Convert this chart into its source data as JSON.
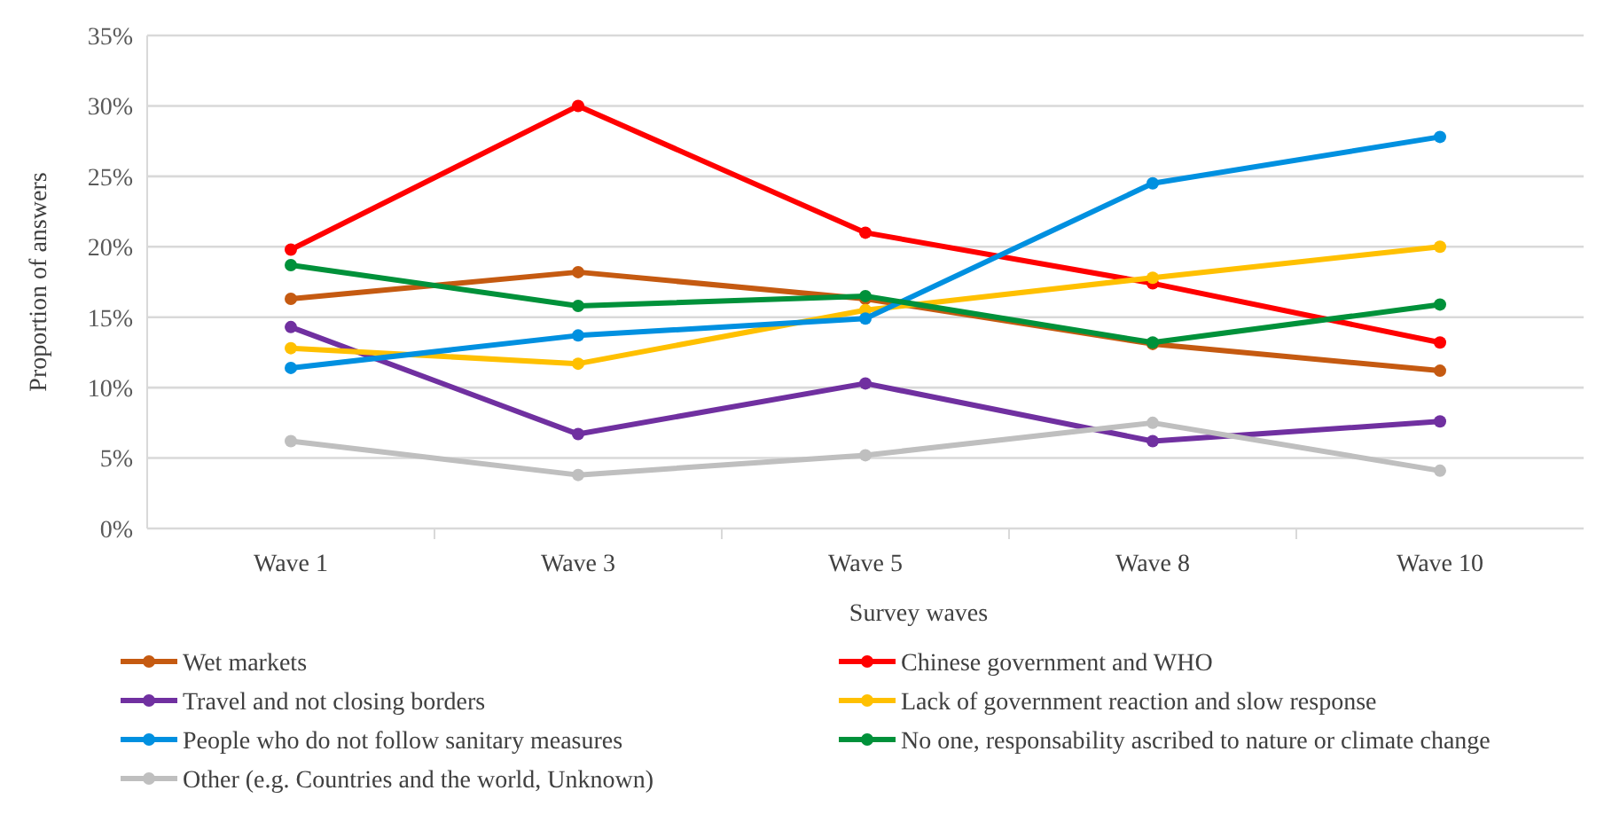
{
  "chart_data": {
    "type": "line",
    "xlabel": "Survey waves",
    "ylabel": "Proportion of answers",
    "categories": [
      "Wave 1",
      "Wave 3",
      "Wave 5",
      "Wave 8",
      "Wave 10"
    ],
    "series": [
      {
        "name": "Wet markets",
        "color": "#c55a11",
        "values": [
          16.3,
          18.2,
          16.3,
          13.1,
          11.2
        ]
      },
      {
        "name": "Chinese government and WHO",
        "color": "#ff0000",
        "values": [
          19.8,
          30.0,
          21.0,
          17.4,
          13.2
        ]
      },
      {
        "name": "Travel and not closing borders",
        "color": "#7030a0",
        "values": [
          14.3,
          6.7,
          10.3,
          6.2,
          7.6
        ]
      },
      {
        "name": "Lack of government reaction and slow response",
        "color": "#ffc000",
        "values": [
          12.8,
          11.7,
          15.5,
          17.8,
          20.0
        ]
      },
      {
        "name": "People who do not follow sanitary measures",
        "color": "#0090e0",
        "values": [
          11.4,
          13.7,
          14.9,
          24.5,
          27.8
        ]
      },
      {
        "name": "No one, responsability ascribed to nature or climate change",
        "color": "#00913a",
        "values": [
          18.7,
          15.8,
          16.5,
          13.2,
          15.9
        ]
      },
      {
        "name": "Other (e.g. Countries and the world, Unknown)",
        "color": "#bfbfbf",
        "values": [
          6.2,
          3.8,
          5.2,
          7.5,
          4.1
        ]
      }
    ],
    "ylim": [
      0,
      35
    ],
    "yticks": [
      {
        "value": 0,
        "label": "0%"
      },
      {
        "value": 5,
        "label": "5%"
      },
      {
        "value": 10,
        "label": "10%"
      },
      {
        "value": 15,
        "label": "15%"
      },
      {
        "value": 20,
        "label": "20%"
      },
      {
        "value": 25,
        "label": "25%"
      },
      {
        "value": 30,
        "label": "30%"
      },
      {
        "value": 35,
        "label": "35%"
      }
    ],
    "grid": "y",
    "legend": "bottom",
    "marker": "circle",
    "line_style": "solid"
  }
}
